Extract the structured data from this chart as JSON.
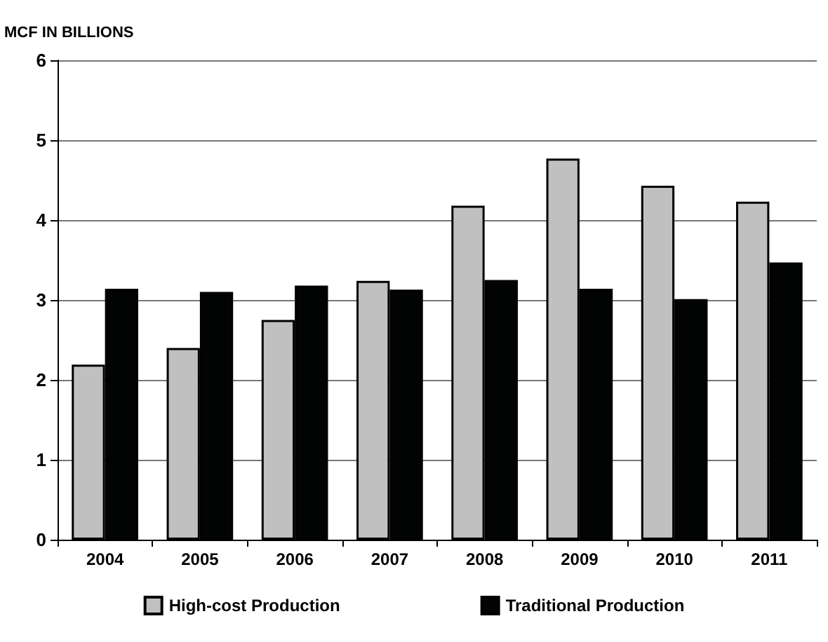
{
  "chart_data": {
    "type": "bar",
    "ylabel": "MCF IN BILLIONS",
    "categories": [
      "2004",
      "2005",
      "2006",
      "2007",
      "2008",
      "2009",
      "2010",
      "2011"
    ],
    "series": [
      {
        "name": "High-cost Production",
        "color": "#c0c0c0",
        "values": [
          2.19,
          2.4,
          2.75,
          3.24,
          4.18,
          4.77,
          4.43,
          4.23
        ]
      },
      {
        "name": "Traditional Production",
        "color": "#020403",
        "values": [
          3.14,
          3.1,
          3.18,
          3.13,
          3.25,
          3.14,
          3.01,
          3.47
        ]
      }
    ],
    "ylim": [
      0,
      6
    ],
    "yticks": [
      0,
      1,
      2,
      3,
      4,
      5,
      6
    ],
    "grid": "y",
    "legend": "bottom"
  }
}
